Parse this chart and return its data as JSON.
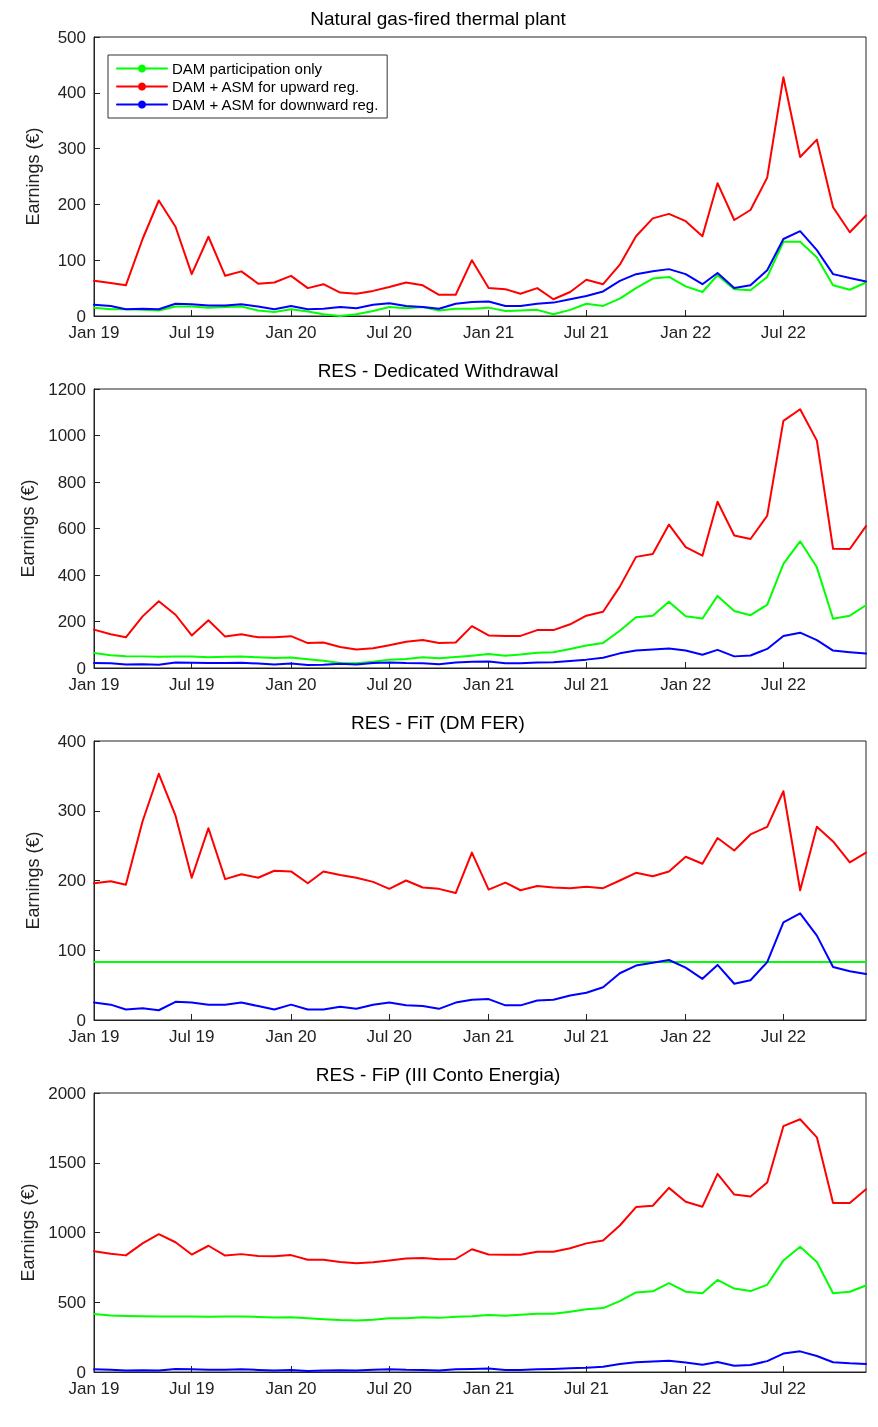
{
  "chart_data": [
    {
      "type": "line",
      "title": "Natural gas-fired thermal plant",
      "ylabel": "Earnings (€)",
      "x": [
        "2019-01",
        "2019-02",
        "2019-03",
        "2019-04",
        "2019-05",
        "2019-06",
        "2019-07",
        "2019-08",
        "2019-09",
        "2019-10",
        "2019-11",
        "2019-12",
        "2020-01",
        "2020-02",
        "2020-03",
        "2020-04",
        "2020-05",
        "2020-06",
        "2020-07",
        "2020-08",
        "2020-09",
        "2020-10",
        "2020-11",
        "2020-12",
        "2021-01",
        "2021-02",
        "2021-03",
        "2021-04",
        "2021-05",
        "2021-06",
        "2021-07",
        "2021-08",
        "2021-09",
        "2021-10",
        "2021-11",
        "2021-12",
        "2022-01",
        "2022-02",
        "2022-03",
        "2022-04",
        "2022-05",
        "2022-06",
        "2022-07",
        "2022-08",
        "2022-09",
        "2022-10",
        "2022-11",
        "2022-12"
      ],
      "xlim": [
        "2019-01",
        "2022-12"
      ],
      "xticks": [
        {
          "value": "2019-01",
          "label": "Jan 19"
        },
        {
          "value": "2019-07",
          "label": "Jul 19"
        },
        {
          "value": "2020-01",
          "label": "Jan 20"
        },
        {
          "value": "2020-07",
          "label": "Jul 20"
        },
        {
          "value": "2021-01",
          "label": "Jan 21"
        },
        {
          "value": "2021-07",
          "label": "Jul 21"
        },
        {
          "value": "2022-01",
          "label": "Jan 22"
        },
        {
          "value": "2022-07",
          "label": "Jul 22"
        }
      ],
      "ylim": [
        0,
        500
      ],
      "yticks": [
        0,
        100,
        200,
        300,
        400,
        500
      ],
      "grid": false,
      "legend": "top left",
      "line_style": "solid",
      "series": [
        {
          "name": "DAM participation only",
          "color": "#00ff00",
          "values": [
            15,
            12,
            12,
            11,
            10,
            17,
            17,
            15,
            16,
            17,
            10,
            7,
            12,
            8,
            3,
            0,
            3,
            9,
            16,
            14,
            16,
            10,
            13,
            13,
            15,
            9,
            10,
            11,
            3,
            11,
            22,
            18,
            31,
            50,
            67,
            70,
            53,
            43,
            73,
            48,
            46,
            70,
            133,
            133,
            105,
            55,
            47,
            60
          ]
        },
        {
          "name": "DAM + ASM for upward reg.",
          "color": "#ff0000",
          "values": [
            63,
            59,
            55,
            138,
            207,
            160,
            75,
            142,
            72,
            80,
            58,
            60,
            72,
            50,
            57,
            42,
            40,
            45,
            52,
            60,
            55,
            38,
            38,
            100,
            50,
            48,
            40,
            50,
            30,
            43,
            65,
            57,
            92,
            143,
            175,
            183,
            170,
            143,
            238,
            172,
            190,
            248,
            428,
            285,
            316,
            195,
            150,
            180
          ]
        },
        {
          "name": "DAM + ASM for downward reg.",
          "color": "#0000ff",
          "values": [
            20,
            18,
            12,
            13,
            12,
            22,
            21,
            19,
            19,
            21,
            17,
            12,
            18,
            12,
            13,
            16,
            14,
            20,
            23,
            18,
            16,
            13,
            22,
            25,
            26,
            18,
            18,
            22,
            24,
            30,
            36,
            44,
            63,
            75,
            80,
            84,
            75,
            57,
            77,
            50,
            55,
            82,
            138,
            152,
            118,
            75,
            68,
            62
          ]
        }
      ]
    },
    {
      "type": "line",
      "title": "RES - Dedicated Withdrawal",
      "ylabel": "Earnings (€)",
      "x": [
        "2019-01",
        "2019-02",
        "2019-03",
        "2019-04",
        "2019-05",
        "2019-06",
        "2019-07",
        "2019-08",
        "2019-09",
        "2019-10",
        "2019-11",
        "2019-12",
        "2020-01",
        "2020-02",
        "2020-03",
        "2020-04",
        "2020-05",
        "2020-06",
        "2020-07",
        "2020-08",
        "2020-09",
        "2020-10",
        "2020-11",
        "2020-12",
        "2021-01",
        "2021-02",
        "2021-03",
        "2021-04",
        "2021-05",
        "2021-06",
        "2021-07",
        "2021-08",
        "2021-09",
        "2021-10",
        "2021-11",
        "2021-12",
        "2022-01",
        "2022-02",
        "2022-03",
        "2022-04",
        "2022-05",
        "2022-06",
        "2022-07",
        "2022-08",
        "2022-09",
        "2022-10",
        "2022-11",
        "2022-12"
      ],
      "xlim": [
        "2019-01",
        "2022-12"
      ],
      "xticks": [
        {
          "value": "2019-01",
          "label": "Jan 19"
        },
        {
          "value": "2019-07",
          "label": "Jul 19"
        },
        {
          "value": "2020-01",
          "label": "Jan 20"
        },
        {
          "value": "2020-07",
          "label": "Jul 20"
        },
        {
          "value": "2021-01",
          "label": "Jan 21"
        },
        {
          "value": "2021-07",
          "label": "Jul 21"
        },
        {
          "value": "2022-01",
          "label": "Jan 22"
        },
        {
          "value": "2022-07",
          "label": "Jul 22"
        }
      ],
      "ylim": [
        0,
        1200
      ],
      "yticks": [
        0,
        200,
        400,
        600,
        800,
        1000,
        1200
      ],
      "grid": false,
      "line_style": "solid",
      "series": [
        {
          "color": "#00ff00",
          "values": [
            65,
            55,
            51,
            50,
            48,
            49,
            49,
            46,
            48,
            49,
            46,
            43,
            45,
            38,
            31,
            22,
            20,
            27,
            36,
            39,
            46,
            42,
            47,
            53,
            60,
            53,
            58,
            66,
            68,
            82,
            97,
            108,
            160,
            218,
            225,
            285,
            223,
            213,
            310,
            245,
            227,
            272,
            448,
            545,
            433,
            212,
            225,
            270
          ]
        },
        {
          "color": "#ff0000",
          "values": [
            165,
            145,
            132,
            222,
            287,
            229,
            140,
            205,
            135,
            145,
            132,
            132,
            137,
            107,
            110,
            90,
            80,
            85,
            98,
            113,
            120,
            108,
            110,
            180,
            140,
            138,
            138,
            163,
            163,
            188,
            225,
            242,
            350,
            478,
            490,
            617,
            520,
            483,
            715,
            570,
            555,
            655,
            1063,
            1113,
            978,
            513,
            512,
            610
          ]
        },
        {
          "color": "#0000ff",
          "values": [
            22,
            20,
            15,
            16,
            14,
            24,
            23,
            21,
            21,
            23,
            19,
            15,
            19,
            13,
            14,
            18,
            15,
            22,
            24,
            21,
            20,
            16,
            24,
            27,
            28,
            20,
            20,
            24,
            25,
            30,
            36,
            44,
            63,
            75,
            80,
            84,
            75,
            57,
            78,
            50,
            54,
            82,
            138,
            152,
            120,
            75,
            68,
            62
          ]
        }
      ]
    },
    {
      "type": "line",
      "title": "RES - FiT (DM FER)",
      "ylabel": "Earnings (€)",
      "x": [
        "2019-01",
        "2019-02",
        "2019-03",
        "2019-04",
        "2019-05",
        "2019-06",
        "2019-07",
        "2019-08",
        "2019-09",
        "2019-10",
        "2019-11",
        "2019-12",
        "2020-01",
        "2020-02",
        "2020-03",
        "2020-04",
        "2020-05",
        "2020-06",
        "2020-07",
        "2020-08",
        "2020-09",
        "2020-10",
        "2020-11",
        "2020-12",
        "2021-01",
        "2021-02",
        "2021-03",
        "2021-04",
        "2021-05",
        "2021-06",
        "2021-07",
        "2021-08",
        "2021-09",
        "2021-10",
        "2021-11",
        "2021-12",
        "2022-01",
        "2022-02",
        "2022-03",
        "2022-04",
        "2022-05",
        "2022-06",
        "2022-07",
        "2022-08",
        "2022-09",
        "2022-10",
        "2022-11",
        "2022-12"
      ],
      "xlim": [
        "2019-01",
        "2022-12"
      ],
      "xticks": [
        {
          "value": "2019-01",
          "label": "Jan 19"
        },
        {
          "value": "2019-07",
          "label": "Jul 19"
        },
        {
          "value": "2020-01",
          "label": "Jan 20"
        },
        {
          "value": "2020-07",
          "label": "Jul 20"
        },
        {
          "value": "2021-01",
          "label": "Jan 21"
        },
        {
          "value": "2021-07",
          "label": "Jul 21"
        },
        {
          "value": "2022-01",
          "label": "Jan 22"
        },
        {
          "value": "2022-07",
          "label": "Jul 22"
        }
      ],
      "ylim": [
        0,
        400
      ],
      "yticks": [
        0,
        100,
        200,
        300,
        400
      ],
      "grid": false,
      "line_style": "solid",
      "series": [
        {
          "color": "#00ff00",
          "values": [
            83,
            83,
            83,
            83,
            83,
            83,
            83,
            83,
            83,
            83,
            83,
            83,
            83,
            83,
            83,
            83,
            83,
            83,
            83,
            83,
            83,
            83,
            83,
            83,
            83,
            83,
            83,
            83,
            83,
            83,
            83,
            83,
            83,
            83,
            83,
            83,
            83,
            83,
            83,
            83,
            83,
            83,
            83,
            83,
            83,
            83,
            83,
            83
          ]
        },
        {
          "color": "#ff0000",
          "values": [
            196,
            199,
            194,
            285,
            353,
            293,
            204,
            275,
            202,
            209,
            204,
            214,
            213,
            196,
            213,
            208,
            204,
            198,
            188,
            200,
            190,
            188,
            182,
            240,
            187,
            197,
            186,
            192,
            190,
            189,
            191,
            189,
            200,
            211,
            206,
            213,
            234,
            224,
            261,
            243,
            266,
            277,
            328,
            186,
            277,
            256,
            226,
            240
          ]
        },
        {
          "color": "#0000ff",
          "values": [
            25,
            22,
            15,
            17,
            14,
            26,
            25,
            22,
            22,
            25,
            20,
            15,
            22,
            15,
            15,
            19,
            16,
            22,
            25,
            21,
            20,
            16,
            25,
            29,
            30,
            21,
            21,
            28,
            29,
            35,
            39,
            47,
            67,
            78,
            82,
            86,
            75,
            59,
            79,
            52,
            57,
            83,
            140,
            153,
            121,
            76,
            70,
            66
          ]
        }
      ]
    },
    {
      "type": "line",
      "title": "RES - FiP (III Conto Energia)",
      "ylabel": "Earnings (€)",
      "x": [
        "2019-01",
        "2019-02",
        "2019-03",
        "2019-04",
        "2019-05",
        "2019-06",
        "2019-07",
        "2019-08",
        "2019-09",
        "2019-10",
        "2019-11",
        "2019-12",
        "2020-01",
        "2020-02",
        "2020-03",
        "2020-04",
        "2020-05",
        "2020-06",
        "2020-07",
        "2020-08",
        "2020-09",
        "2020-10",
        "2020-11",
        "2020-12",
        "2021-01",
        "2021-02",
        "2021-03",
        "2021-04",
        "2021-05",
        "2021-06",
        "2021-07",
        "2021-08",
        "2021-09",
        "2021-10",
        "2021-11",
        "2021-12",
        "2022-01",
        "2022-02",
        "2022-03",
        "2022-04",
        "2022-05",
        "2022-06",
        "2022-07",
        "2022-08",
        "2022-09",
        "2022-10",
        "2022-11",
        "2022-12"
      ],
      "xlim": [
        "2019-01",
        "2022-12"
      ],
      "xticks": [
        {
          "value": "2019-01",
          "label": "Jan 19"
        },
        {
          "value": "2019-07",
          "label": "Jul 19"
        },
        {
          "value": "2020-01",
          "label": "Jan 20"
        },
        {
          "value": "2020-07",
          "label": "Jul 20"
        },
        {
          "value": "2021-01",
          "label": "Jan 21"
        },
        {
          "value": "2021-07",
          "label": "Jul 21"
        },
        {
          "value": "2022-01",
          "label": "Jan 22"
        },
        {
          "value": "2022-07",
          "label": "Jul 22"
        }
      ],
      "ylim": [
        0,
        2000
      ],
      "yticks": [
        0,
        500,
        1000,
        1500,
        2000
      ],
      "grid": false,
      "line_style": "solid",
      "series": [
        {
          "color": "#00ff00",
          "values": [
            416,
            405,
            402,
            400,
            398,
            398,
            398,
            396,
            397,
            398,
            395,
            390,
            393,
            385,
            378,
            372,
            370,
            375,
            385,
            386,
            393,
            388,
            396,
            400,
            408,
            403,
            410,
            418,
            418,
            432,
            450,
            458,
            508,
            570,
            578,
            637,
            576,
            565,
            660,
            598,
            580,
            625,
            800,
            898,
            788,
            565,
            575,
            620
          ]
        },
        {
          "color": "#ff0000",
          "values": [
            865,
            848,
            836,
            922,
            988,
            930,
            842,
            905,
            835,
            845,
            832,
            830,
            838,
            805,
            805,
            788,
            780,
            787,
            800,
            813,
            818,
            808,
            810,
            880,
            842,
            840,
            840,
            862,
            862,
            887,
            922,
            942,
            1050,
            1182,
            1192,
            1320,
            1220,
            1185,
            1420,
            1272,
            1258,
            1358,
            1762,
            1812,
            1682,
            1212,
            1212,
            1310
          ]
        },
        {
          "color": "#0000ff",
          "values": [
            20,
            16,
            10,
            12,
            10,
            22,
            20,
            17,
            17,
            20,
            15,
            10,
            15,
            8,
            10,
            13,
            11,
            17,
            20,
            16,
            15,
            10,
            20,
            22,
            25,
            15,
            15,
            20,
            22,
            26,
            30,
            38,
            58,
            70,
            75,
            80,
            68,
            52,
            72,
            45,
            50,
            78,
            132,
            148,
            115,
            70,
            62,
            58
          ]
        }
      ]
    }
  ]
}
